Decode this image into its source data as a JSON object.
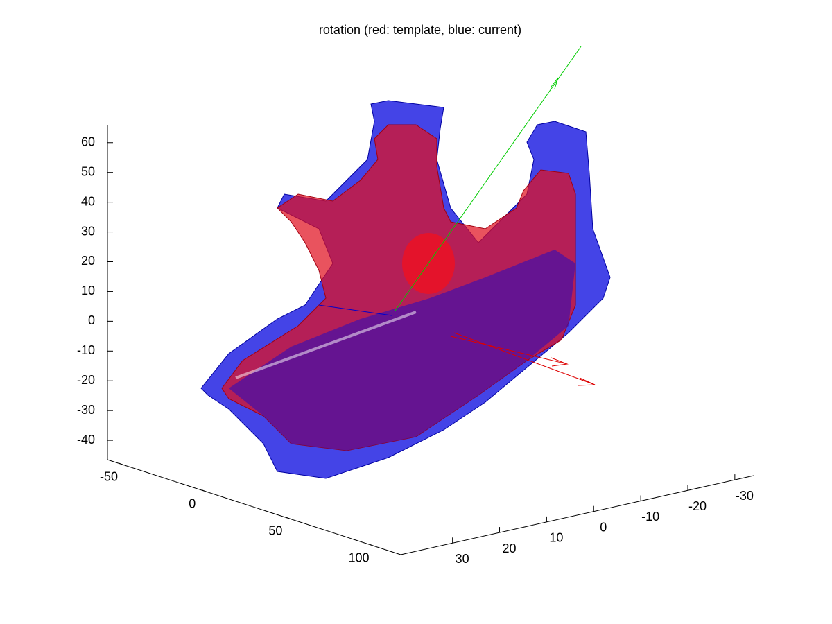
{
  "chart_data": {
    "type": "surface3d",
    "title": "rotation (red: template, blue: current)",
    "xlim": [
      -60,
      116
    ],
    "xticks": [
      -50,
      0,
      50,
      100
    ],
    "ylim": [
      41,
      -34
    ],
    "yticks": [
      30,
      20,
      10,
      0,
      -10,
      -20,
      -30
    ],
    "zlim": [
      -46.5,
      66
    ],
    "zticks": [
      60,
      50,
      40,
      30,
      20,
      10,
      0,
      -10,
      -20,
      -30,
      -40
    ]
  }
}
